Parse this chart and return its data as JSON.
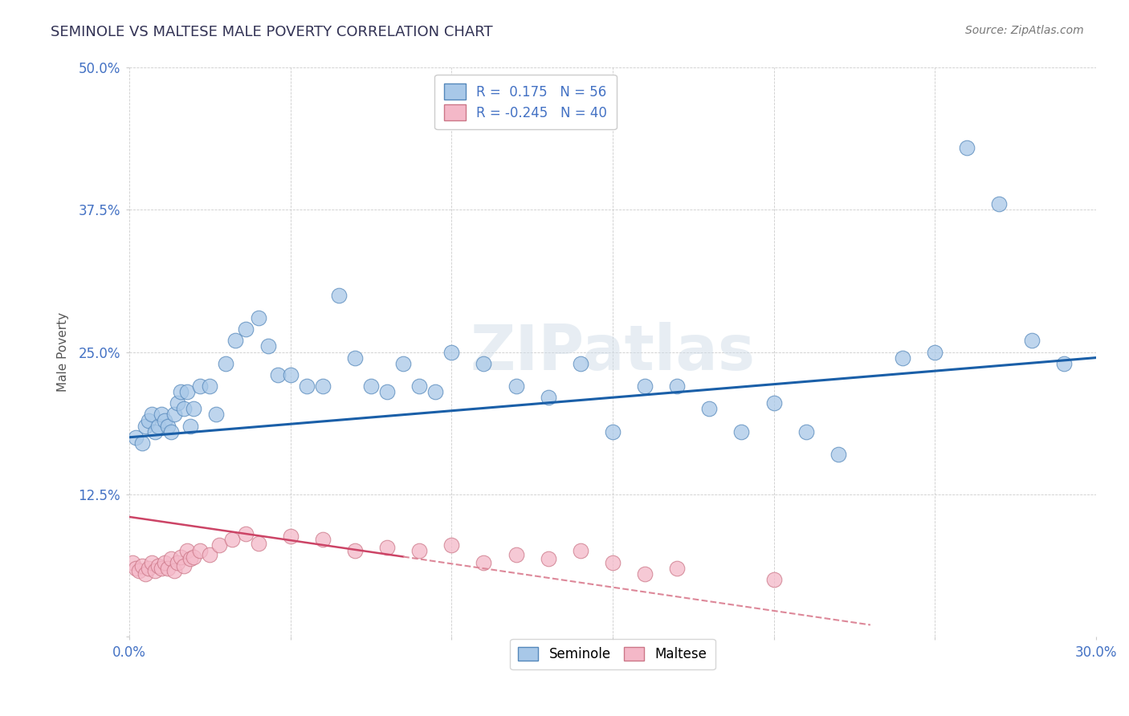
{
  "title": "SEMINOLE VS MALTESE MALE POVERTY CORRELATION CHART",
  "source_text": "Source: ZipAtlas.com",
  "ylabel": "Male Poverty",
  "xlim": [
    0.0,
    0.3
  ],
  "ylim": [
    0.0,
    0.5
  ],
  "xticks": [
    0.0,
    0.05,
    0.1,
    0.15,
    0.2,
    0.25,
    0.3
  ],
  "yticks": [
    0.0,
    0.125,
    0.25,
    0.375,
    0.5
  ],
  "seminole_R": 0.175,
  "seminole_N": 56,
  "maltese_R": -0.245,
  "maltese_N": 40,
  "seminole_fill": "#a8c8e8",
  "seminole_edge": "#5588bb",
  "maltese_fill": "#f4b8c8",
  "maltese_edge": "#cc7788",
  "trend_seminole_color": "#1a5fa8",
  "trend_maltese_solid_color": "#cc4466",
  "trend_maltese_dash_color": "#dd8899",
  "background_color": "#ffffff",
  "watermark": "ZIPatlas",
  "tick_color": "#4472c4",
  "title_color": "#333355",
  "seminole_x": [
    0.002,
    0.004,
    0.005,
    0.006,
    0.007,
    0.008,
    0.009,
    0.01,
    0.011,
    0.012,
    0.013,
    0.014,
    0.015,
    0.016,
    0.017,
    0.018,
    0.019,
    0.02,
    0.022,
    0.025,
    0.027,
    0.03,
    0.033,
    0.036,
    0.04,
    0.043,
    0.046,
    0.05,
    0.055,
    0.06,
    0.065,
    0.07,
    0.075,
    0.08,
    0.085,
    0.09,
    0.095,
    0.1,
    0.11,
    0.12,
    0.13,
    0.14,
    0.15,
    0.16,
    0.17,
    0.18,
    0.19,
    0.2,
    0.21,
    0.22,
    0.24,
    0.25,
    0.26,
    0.27,
    0.28,
    0.29
  ],
  "seminole_y": [
    0.175,
    0.17,
    0.185,
    0.19,
    0.195,
    0.18,
    0.185,
    0.195,
    0.19,
    0.185,
    0.18,
    0.195,
    0.205,
    0.215,
    0.2,
    0.215,
    0.185,
    0.2,
    0.22,
    0.22,
    0.195,
    0.24,
    0.26,
    0.27,
    0.28,
    0.255,
    0.23,
    0.23,
    0.22,
    0.22,
    0.3,
    0.245,
    0.22,
    0.215,
    0.24,
    0.22,
    0.215,
    0.25,
    0.24,
    0.22,
    0.21,
    0.24,
    0.18,
    0.22,
    0.22,
    0.2,
    0.18,
    0.205,
    0.18,
    0.16,
    0.245,
    0.25,
    0.43,
    0.38,
    0.26,
    0.24
  ],
  "maltese_x": [
    0.001,
    0.002,
    0.003,
    0.004,
    0.005,
    0.006,
    0.007,
    0.008,
    0.009,
    0.01,
    0.011,
    0.012,
    0.013,
    0.014,
    0.015,
    0.016,
    0.017,
    0.018,
    0.019,
    0.02,
    0.022,
    0.025,
    0.028,
    0.032,
    0.036,
    0.04,
    0.05,
    0.06,
    0.07,
    0.08,
    0.09,
    0.1,
    0.11,
    0.12,
    0.13,
    0.14,
    0.15,
    0.16,
    0.17,
    0.2
  ],
  "maltese_y": [
    0.065,
    0.06,
    0.058,
    0.062,
    0.055,
    0.06,
    0.065,
    0.058,
    0.062,
    0.06,
    0.065,
    0.06,
    0.068,
    0.058,
    0.065,
    0.07,
    0.062,
    0.075,
    0.068,
    0.07,
    0.075,
    0.072,
    0.08,
    0.085,
    0.09,
    0.082,
    0.088,
    0.085,
    0.075,
    0.078,
    0.075,
    0.08,
    0.065,
    0.072,
    0.068,
    0.075,
    0.065,
    0.055,
    0.06,
    0.05
  ],
  "trend_sem_x0": 0.0,
  "trend_sem_y0": 0.175,
  "trend_sem_x1": 0.3,
  "trend_sem_y1": 0.245,
  "trend_mal_solid_x0": 0.0,
  "trend_mal_solid_y0": 0.105,
  "trend_mal_solid_x1": 0.085,
  "trend_mal_solid_y1": 0.07,
  "trend_mal_dash_x0": 0.085,
  "trend_mal_dash_y0": 0.07,
  "trend_mal_dash_x1": 0.23,
  "trend_mal_dash_y1": 0.01
}
